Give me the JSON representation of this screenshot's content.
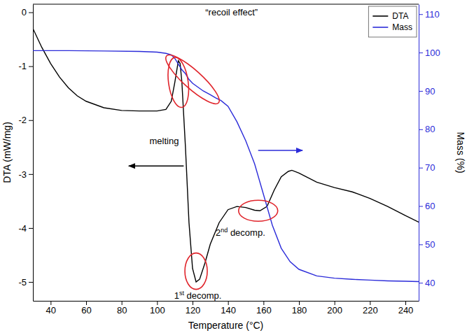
{
  "chart_data": {
    "type": "line",
    "x_label": "Temperature (°C)",
    "y_label": "DTA (mW/mg)",
    "y2_label": "Mass (%)",
    "xlim": [
      30,
      247.5
    ],
    "xticks": [
      40,
      60,
      80,
      100,
      120,
      140,
      160,
      180,
      200,
      220,
      240
    ],
    "ylim": [
      -5.35,
      0.15
    ],
    "yticks": [
      -5,
      -4,
      -3,
      -2,
      -1,
      0
    ],
    "y2lim": [
      35.3,
      112.6
    ],
    "y2ticks": [
      40,
      50,
      60,
      70,
      80,
      90,
      100,
      110
    ],
    "legend": "top-right",
    "series": [
      {
        "name": "DTA",
        "color": "#000000",
        "x": [
          30,
          35,
          40,
          45,
          50,
          55,
          60,
          70,
          80,
          90,
          100,
          105,
          108,
          110,
          112,
          113,
          114,
          116,
          118,
          120,
          122,
          124,
          127,
          130,
          135,
          140,
          145,
          150,
          155,
          158,
          162,
          166,
          170,
          174,
          176,
          180,
          190,
          200,
          210,
          220,
          230,
          240,
          250
        ],
        "values": [
          -0.3,
          -0.65,
          -0.95,
          -1.2,
          -1.4,
          -1.55,
          -1.65,
          -1.77,
          -1.82,
          -1.83,
          -1.83,
          -1.8,
          -1.65,
          -1.3,
          -0.9,
          -0.95,
          -1.3,
          -2.5,
          -3.9,
          -4.75,
          -5.0,
          -4.95,
          -4.65,
          -4.3,
          -3.9,
          -3.66,
          -3.6,
          -3.62,
          -3.67,
          -3.68,
          -3.6,
          -3.3,
          -3.05,
          -2.95,
          -2.93,
          -2.98,
          -3.15,
          -3.25,
          -3.33,
          -3.45,
          -3.6,
          -3.77,
          -3.93
        ]
      },
      {
        "name": "Mass",
        "color": "#2b2bd9",
        "axis": "y2",
        "x": [
          30,
          50,
          70,
          90,
          100,
          105,
          108,
          110,
          112,
          114,
          116,
          118,
          120,
          123,
          126,
          130,
          133,
          136,
          140,
          145,
          150,
          155,
          160,
          165,
          170,
          175,
          180,
          190,
          200,
          210,
          220,
          230,
          240,
          250
        ],
        "values": [
          100.5,
          100.5,
          100.4,
          100.3,
          100.1,
          99.8,
          99.4,
          98.5,
          97,
          95.5,
          94.5,
          93,
          92,
          91,
          90,
          89,
          88.2,
          87.5,
          86,
          82,
          77,
          71,
          63,
          55,
          49,
          45.5,
          43.5,
          41.8,
          41.2,
          40.9,
          40.7,
          40.5,
          40.4,
          40.3
        ]
      }
    ],
    "annotations": [
      {
        "text": "“recoil effect”"
      },
      {
        "text": "melting"
      },
      {
        "text": "1st decomp."
      },
      {
        "text": "2nd decomp."
      }
    ]
  }
}
